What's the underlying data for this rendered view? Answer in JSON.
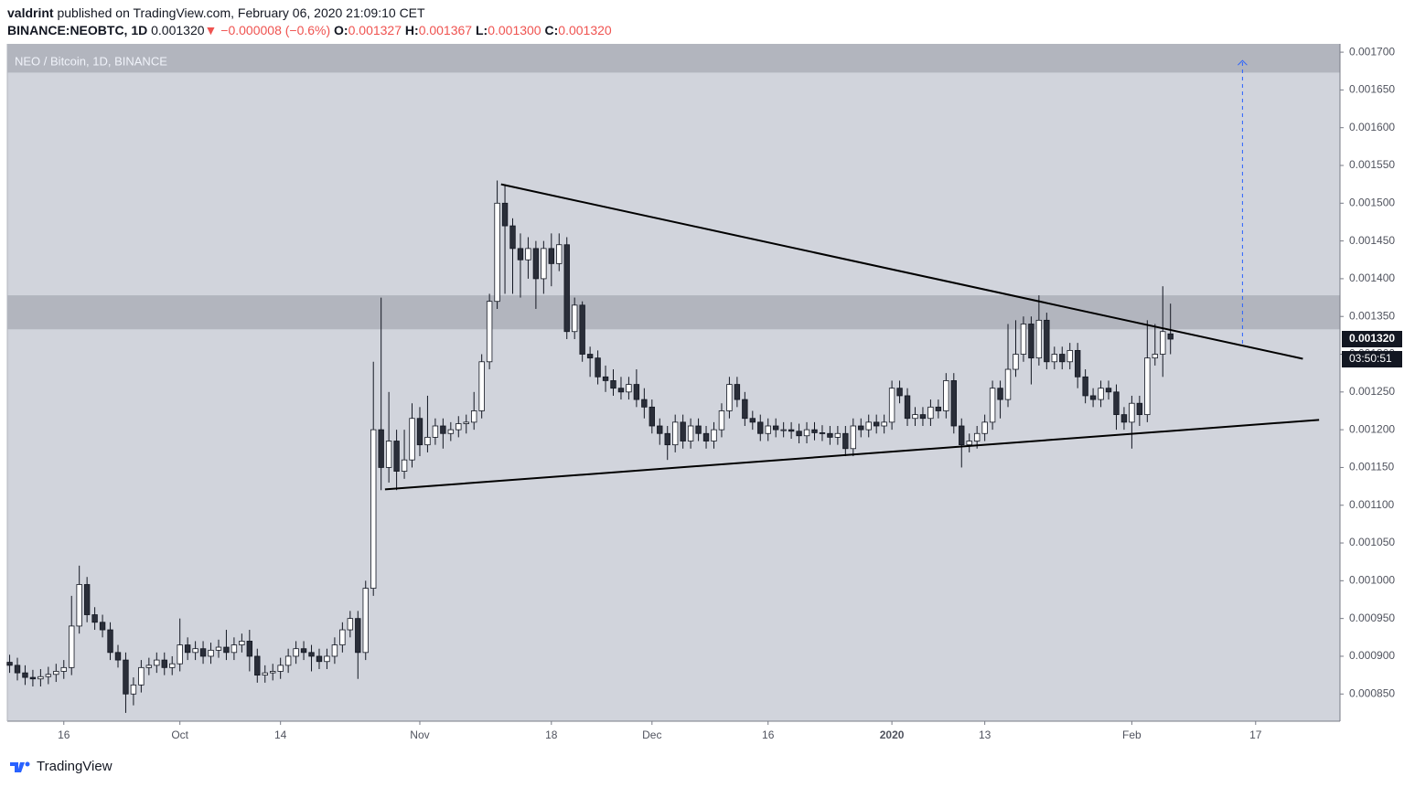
{
  "header": {
    "author": "valdrint",
    "published": "published on TradingView.com, February 06, 2020 21:09:10 CET",
    "symbol": "BINANCE:NEOBTC, 1D",
    "price": "0.001320",
    "arrow": "▼",
    "change": "−0.000008 (−0.6%)",
    "o_label": "O:",
    "o": "0.001327",
    "h_label": "H:",
    "h": "0.001367",
    "l_label": "L:",
    "l": "0.001300",
    "c_label": "C:",
    "c": "0.001320"
  },
  "footer": {
    "brand": "TradingView"
  },
  "chart_data": {
    "type": "candlestick",
    "title": "NEO / Bitcoin, 1D, BINANCE",
    "up_color": "#ffffff",
    "down_color": "#2a2e39",
    "wick_color": "#131722",
    "open": [
      0.000892,
      0.000888,
      0.000878,
      0.000872,
      0.00087,
      0.000873,
      0.000876,
      0.00088,
      0.000885,
      0.00094,
      0.000995,
      0.000955,
      0.000945,
      0.000935,
      0.000905,
      0.000895,
      0.00085,
      0.000862,
      0.000885,
      0.000888,
      0.000895,
      0.000885,
      0.00089,
      0.000915,
      0.000905,
      0.00091,
      0.0009,
      0.000908,
      0.000912,
      0.000905,
      0.000915,
      0.00092,
      0.0009,
      0.000875,
      0.000878,
      0.00088,
      0.000888,
      0.0009,
      0.00091,
      0.000905,
      0.0009,
      0.000893,
      0.0009,
      0.000915,
      0.000935,
      0.00095,
      0.000905,
      0.00099,
      0.0012,
      0.00115,
      0.001185,
      0.001145,
      0.00116,
      0.001215,
      0.00118,
      0.00119,
      0.001205,
      0.001195,
      0.0012,
      0.001208,
      0.00121,
      0.001225,
      0.00129,
      0.00137,
      0.0015,
      0.00147,
      0.00144,
      0.001425,
      0.00144,
      0.0014,
      0.00144,
      0.00142,
      0.001445,
      0.00133,
      0.001365,
      0.0013,
      0.001295,
      0.00127,
      0.001265,
      0.001255,
      0.00125,
      0.00126,
      0.00124,
      0.00123,
      0.001205,
      0.001195,
      0.00118,
      0.00121,
      0.001185,
      0.001205,
      0.001195,
      0.001185,
      0.0012,
      0.001225,
      0.00126,
      0.00124,
      0.001215,
      0.00121,
      0.001195,
      0.001205,
      0.0012,
      0.0012,
      0.001198,
      0.001192,
      0.0012,
      0.001196,
      0.001195,
      0.00119,
      0.001195,
      0.001175,
      0.001205,
      0.0012,
      0.00121,
      0.001205,
      0.00121,
      0.001255,
      0.001245,
      0.001215,
      0.00122,
      0.001215,
      0.00123,
      0.001225,
      0.001265,
      0.001205,
      0.00118,
      0.001185,
      0.001195,
      0.00121,
      0.001255,
      0.00124,
      0.00128,
      0.0013,
      0.00134,
      0.001295,
      0.001345,
      0.00129,
      0.0013,
      0.00129,
      0.001305,
      0.00127,
      0.001245,
      0.00124,
      0.001255,
      0.00125,
      0.00122,
      0.00121,
      0.001235,
      0.00122,
      0.001295,
      0.0013,
      0.001327
    ],
    "high": [
      0.000902,
      0.000898,
      0.000888,
      0.000882,
      0.000883,
      0.000886,
      0.00089,
      0.000895,
      0.00098,
      0.00102,
      0.001005,
      0.000965,
      0.000955,
      0.000945,
      0.000915,
      0.000905,
      0.000872,
      0.000895,
      0.000898,
      0.000905,
      0.000905,
      0.0009,
      0.00095,
      0.000925,
      0.00092,
      0.00092,
      0.000918,
      0.000922,
      0.000935,
      0.000925,
      0.00093,
      0.000935,
      0.00091,
      0.000888,
      0.00089,
      0.000898,
      0.00091,
      0.00092,
      0.00092,
      0.000915,
      0.00091,
      0.00091,
      0.000925,
      0.000945,
      0.00096,
      0.00096,
      0.001,
      0.00129,
      0.001375,
      0.00125,
      0.0012,
      0.0012,
      0.001235,
      0.00123,
      0.001245,
      0.001215,
      0.001215,
      0.00121,
      0.001218,
      0.00122,
      0.00125,
      0.0013,
      0.00138,
      0.00153,
      0.001525,
      0.00148,
      0.00146,
      0.001455,
      0.00145,
      0.00145,
      0.00146,
      0.00146,
      0.001455,
      0.001375,
      0.00137,
      0.00131,
      0.001305,
      0.001285,
      0.00128,
      0.00127,
      0.00127,
      0.00128,
      0.001255,
      0.00124,
      0.001215,
      0.001205,
      0.00122,
      0.00122,
      0.001215,
      0.001215,
      0.001205,
      0.00121,
      0.001235,
      0.00127,
      0.00127,
      0.00125,
      0.001225,
      0.00122,
      0.001215,
      0.001215,
      0.00121,
      0.00121,
      0.001208,
      0.00121,
      0.00121,
      0.001206,
      0.001205,
      0.001205,
      0.001205,
      0.001215,
      0.001215,
      0.00122,
      0.00122,
      0.00122,
      0.001265,
      0.001265,
      0.001255,
      0.00123,
      0.00123,
      0.00124,
      0.00124,
      0.001275,
      0.001275,
      0.001215,
      0.001195,
      0.001205,
      0.00122,
      0.001265,
      0.001265,
      0.00134,
      0.001345,
      0.00135,
      0.00135,
      0.001378,
      0.001355,
      0.00131,
      0.00131,
      0.001315,
      0.001315,
      0.00128,
      0.001255,
      0.001265,
      0.001265,
      0.00126,
      0.00123,
      0.001245,
      0.001245,
      0.001345,
      0.00134,
      0.00139,
      0.001367
    ],
    "low": [
      0.000878,
      0.000868,
      0.000862,
      0.00086,
      0.00086,
      0.000863,
      0.000866,
      0.00087,
      0.000875,
      0.00093,
      0.000945,
      0.000935,
      0.000925,
      0.000895,
      0.000885,
      0.000825,
      0.000835,
      0.000852,
      0.000875,
      0.000878,
      0.000875,
      0.000875,
      0.00088,
      0.000895,
      0.000895,
      0.00089,
      0.00089,
      0.000898,
      0.000895,
      0.000895,
      0.000905,
      0.00088,
      0.000865,
      0.000865,
      0.000868,
      0.00087,
      0.000878,
      0.00089,
      0.000895,
      0.00088,
      0.000883,
      0.000883,
      0.00089,
      0.000905,
      0.000925,
      0.00087,
      0.000895,
      0.00098,
      0.00112,
      0.00113,
      0.00112,
      0.001135,
      0.00115,
      0.001165,
      0.00117,
      0.00118,
      0.001175,
      0.001185,
      0.00119,
      0.001195,
      0.0012,
      0.001215,
      0.00128,
      0.00136,
      0.00138,
      0.00138,
      0.001375,
      0.0014,
      0.00136,
      0.00138,
      0.00139,
      0.00141,
      0.00132,
      0.00132,
      0.00129,
      0.00127,
      0.00126,
      0.00125,
      0.001245,
      0.00124,
      0.00124,
      0.00123,
      0.001215,
      0.001195,
      0.00118,
      0.00116,
      0.00117,
      0.001175,
      0.001175,
      0.001185,
      0.001175,
      0.001175,
      0.00119,
      0.001215,
      0.00123,
      0.001205,
      0.0012,
      0.001185,
      0.001185,
      0.00119,
      0.00119,
      0.001188,
      0.001182,
      0.001182,
      0.001186,
      0.001185,
      0.00118,
      0.00118,
      0.001165,
      0.001165,
      0.00119,
      0.00119,
      0.001195,
      0.001195,
      0.0012,
      0.001235,
      0.001205,
      0.001205,
      0.001205,
      0.001205,
      0.001215,
      0.001215,
      0.001195,
      0.00115,
      0.00117,
      0.001175,
      0.001185,
      0.0012,
      0.001215,
      0.00123,
      0.00127,
      0.00129,
      0.00126,
      0.001285,
      0.00128,
      0.00128,
      0.00128,
      0.00128,
      0.001255,
      0.001235,
      0.00123,
      0.00123,
      0.00124,
      0.0012,
      0.0012,
      0.001175,
      0.001205,
      0.00121,
      0.001285,
      0.00127,
      0.0013
    ],
    "close": [
      0.000888,
      0.000878,
      0.000872,
      0.00087,
      0.000873,
      0.000876,
      0.00088,
      0.000885,
      0.00094,
      0.000995,
      0.000955,
      0.000945,
      0.000935,
      0.000905,
      0.000895,
      0.00085,
      0.000862,
      0.000885,
      0.000888,
      0.000895,
      0.000885,
      0.00089,
      0.000915,
      0.000905,
      0.00091,
      0.0009,
      0.000908,
      0.000912,
      0.000905,
      0.000915,
      0.00092,
      0.0009,
      0.000875,
      0.000878,
      0.00088,
      0.000888,
      0.0009,
      0.00091,
      0.000905,
      0.0009,
      0.000893,
      0.0009,
      0.000915,
      0.000935,
      0.00095,
      0.000905,
      0.00099,
      0.0012,
      0.00115,
      0.001185,
      0.001145,
      0.00116,
      0.001215,
      0.00118,
      0.00119,
      0.001205,
      0.001195,
      0.0012,
      0.001208,
      0.00121,
      0.001225,
      0.00129,
      0.00137,
      0.0015,
      0.00147,
      0.00144,
      0.001425,
      0.00144,
      0.0014,
      0.00144,
      0.00142,
      0.001445,
      0.00133,
      0.001365,
      0.0013,
      0.001295,
      0.00127,
      0.001265,
      0.001255,
      0.00125,
      0.00126,
      0.00124,
      0.00123,
      0.001205,
      0.001195,
      0.00118,
      0.00121,
      0.001185,
      0.001205,
      0.001195,
      0.001185,
      0.0012,
      0.001225,
      0.00126,
      0.00124,
      0.001215,
      0.00121,
      0.001195,
      0.001205,
      0.0012,
      0.0012,
      0.001198,
      0.001192,
      0.0012,
      0.001196,
      0.001195,
      0.00119,
      0.001195,
      0.001175,
      0.001205,
      0.0012,
      0.00121,
      0.001205,
      0.00121,
      0.001255,
      0.001245,
      0.001215,
      0.00122,
      0.001215,
      0.00123,
      0.001225,
      0.001265,
      0.001205,
      0.00118,
      0.001185,
      0.001195,
      0.00121,
      0.001255,
      0.00124,
      0.00128,
      0.0013,
      0.00134,
      0.001295,
      0.001345,
      0.00129,
      0.0013,
      0.00129,
      0.001305,
      0.00127,
      0.001245,
      0.00124,
      0.001255,
      0.00125,
      0.00122,
      0.00121,
      0.001235,
      0.00122,
      0.001295,
      0.0013,
      0.00133,
      0.00132
    ],
    "xlim": [
      -0.3,
      171.9
    ],
    "xticks": [
      {
        "value": 7,
        "label": "16"
      },
      {
        "value": 22,
        "label": "Oct"
      },
      {
        "value": 35,
        "label": "14"
      },
      {
        "value": 53,
        "label": "Nov"
      },
      {
        "value": 70,
        "label": "18"
      },
      {
        "value": 83,
        "label": "Dec"
      },
      {
        "value": 98,
        "label": "16"
      },
      {
        "value": 114,
        "label": "2020"
      },
      {
        "value": 126,
        "label": "13"
      },
      {
        "value": 145,
        "label": "Feb"
      },
      {
        "value": 161,
        "label": "17"
      }
    ],
    "ylim": [
      0.000814,
      0.001711
    ],
    "yticks": [
      {
        "value": 0.00085,
        "label": "0.000850"
      },
      {
        "value": 0.0009,
        "label": "0.000900"
      },
      {
        "value": 0.00095,
        "label": "0.000950"
      },
      {
        "value": 0.001,
        "label": "0.001000"
      },
      {
        "value": 0.00105,
        "label": "0.001050"
      },
      {
        "value": 0.0011,
        "label": "0.001100"
      },
      {
        "value": 0.00115,
        "label": "0.001150"
      },
      {
        "value": 0.0012,
        "label": "0.001200"
      },
      {
        "value": 0.00125,
        "label": "0.001250"
      },
      {
        "value": 0.0013,
        "label": "0.001300"
      },
      {
        "value": 0.00135,
        "label": "0.001350"
      },
      {
        "value": 0.0014,
        "label": "0.001400"
      },
      {
        "value": 0.00145,
        "label": "0.001450"
      },
      {
        "value": 0.0015,
        "label": "0.001500"
      },
      {
        "value": 0.00155,
        "label": "0.001550"
      },
      {
        "value": 0.0016,
        "label": "0.001600"
      },
      {
        "value": 0.00165,
        "label": "0.001650"
      },
      {
        "value": 0.0017,
        "label": "0.001700"
      }
    ],
    "zones": [
      [
        0.001333,
        0.001378
      ],
      [
        0.001673,
        0.001711
      ]
    ],
    "zone_color": "#b2b5be",
    "trendlines": [
      [
        63.5,
        0.001525,
        167.1,
        0.001294
      ],
      [
        48.5,
        0.001121,
        169.2,
        0.001213
      ]
    ],
    "target_arrow": [
      159.3,
      0.001314,
      0.001689
    ],
    "last_price": {
      "value": 0.00132,
      "label": "0.001320"
    },
    "countdown": "03:50:51"
  }
}
